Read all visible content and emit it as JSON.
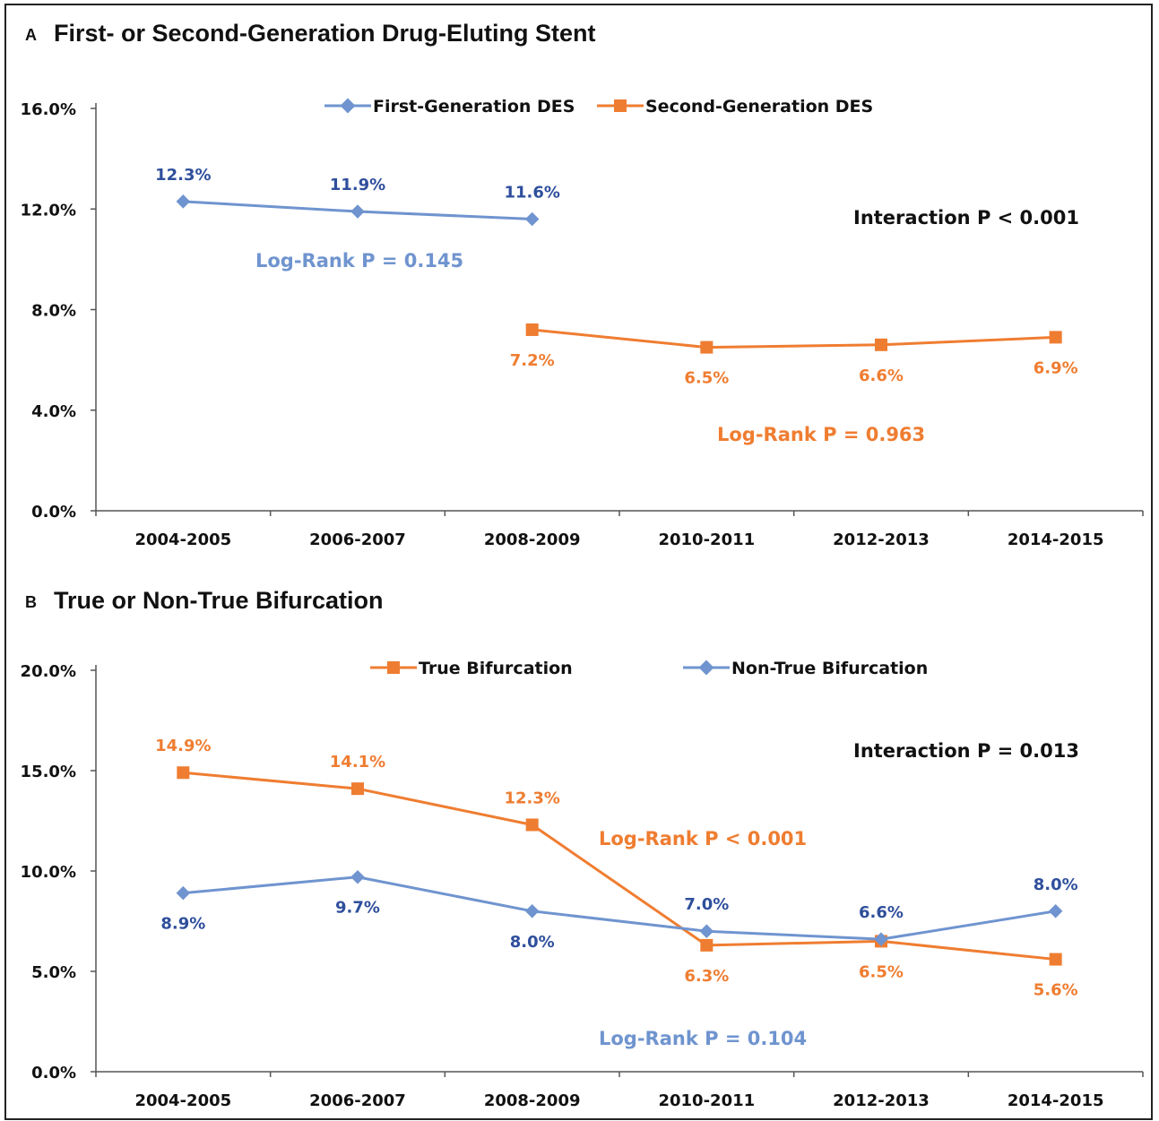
{
  "chart_data": [
    {
      "type": "line",
      "panel_letter": "A",
      "title": "First- or Second-Generation Drug-Eluting Stent",
      "categories": [
        "2004-2005",
        "2006-2007",
        "2008-2009",
        "2010-2011",
        "2012-2013",
        "2014-2015"
      ],
      "yticks": [
        "0.0%",
        "4.0%",
        "8.0%",
        "12.0%",
        "16.0%"
      ],
      "ylim": [
        0,
        16
      ],
      "series": [
        {
          "name": "First-Generation DES",
          "color": "#6f94cf",
          "label_color": "#2f4f9c",
          "marker": "diamond",
          "values": [
            12.3,
            11.9,
            11.6,
            null,
            null,
            null
          ],
          "labels": [
            "12.3%",
            "11.9%",
            "11.6%",
            null,
            null,
            null
          ],
          "label_pos": [
            "above",
            "above",
            "above",
            null,
            null,
            null
          ]
        },
        {
          "name": "Second-Generation DES",
          "color": "#ef7d31",
          "label_color": "#ef7d31",
          "marker": "square",
          "values": [
            null,
            null,
            7.2,
            6.5,
            6.6,
            6.9
          ],
          "labels": [
            null,
            null,
            "7.2%",
            "6.5%",
            "6.6%",
            "6.9%"
          ],
          "label_pos": [
            null,
            null,
            "below",
            "below",
            "below",
            "below"
          ]
        }
      ],
      "annotations": [
        {
          "text": "Interaction P < 0.001",
          "color": "#111111"
        },
        {
          "text": "Log-Rank P = 0.145",
          "color": "#6f94cf"
        },
        {
          "text": "Log-Rank P = 0.963",
          "color": "#ef7d31"
        }
      ]
    },
    {
      "type": "line",
      "panel_letter": "B",
      "title": "True or Non-True Bifurcation",
      "categories": [
        "2004-2005",
        "2006-2007",
        "2008-2009",
        "2010-2011",
        "2012-2013",
        "2014-2015"
      ],
      "yticks": [
        "0.0%",
        "5.0%",
        "10.0%",
        "15.0%",
        "20.0%"
      ],
      "ylim": [
        0,
        20
      ],
      "series": [
        {
          "name": "True Bifurcation",
          "color": "#ef7d31",
          "label_color": "#ef7d31",
          "marker": "square",
          "values": [
            14.9,
            14.1,
            12.3,
            6.3,
            6.5,
            5.6
          ],
          "labels": [
            "14.9%",
            "14.1%",
            "12.3%",
            "6.3%",
            "6.5%",
            "5.6%"
          ],
          "label_pos": [
            "above",
            "above",
            "above",
            "below",
            "below",
            "below"
          ]
        },
        {
          "name": "Non-True Bifurcation",
          "color": "#6f94cf",
          "label_color": "#2f4f9c",
          "marker": "diamond",
          "values": [
            8.9,
            9.7,
            8.0,
            7.0,
            6.6,
            8.0
          ],
          "labels": [
            "8.9%",
            "9.7%",
            "8.0%",
            "7.0%",
            "6.6%",
            "8.0%"
          ],
          "label_pos": [
            "below",
            "below",
            "below",
            "above",
            "above",
            "above"
          ]
        }
      ],
      "annotations": [
        {
          "text": "Interaction P = 0.013",
          "color": "#111111"
        },
        {
          "text": "Log-Rank P < 0.001",
          "color": "#ef7d31"
        },
        {
          "text": "Log-Rank P = 0.104",
          "color": "#6f94cf"
        }
      ]
    }
  ]
}
